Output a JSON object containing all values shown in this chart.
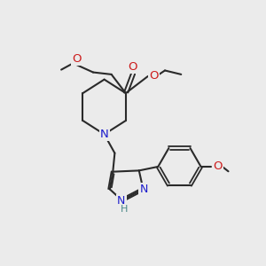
{
  "bg_color": "#ebebeb",
  "bond_color": "#2a2a2a",
  "N_color": "#1c1ccc",
  "O_color": "#cc1c1c",
  "H_color": "#4a8888",
  "font_size_atom": 8.5,
  "fig_size": [
    3.0,
    3.0
  ],
  "dpi": 100,
  "xlim": [
    0,
    10
  ],
  "ylim": [
    0,
    10
  ]
}
